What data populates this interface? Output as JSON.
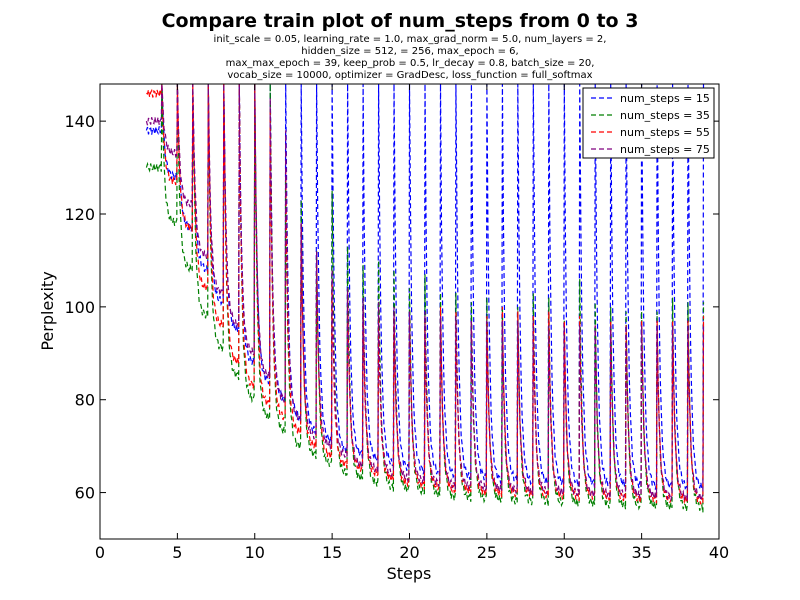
{
  "chart_data": {
    "type": "line",
    "title": "Compare train plot of num_steps from 0 to 3",
    "subtitle_lines": [
      "init_scale = 0.05, learning_rate = 1.0, max_grad_norm = 5.0, num_layers = 2,",
      "hidden_size = 512,   = 256, max_epoch = 6,",
      "max_max_epoch = 39, keep_prob = 0.5, lr_decay = 0.8, batch_size = 20,",
      "vocab_size = 10000, optimizer = GradDesc, loss_function = full_softmax"
    ],
    "xlabel": "Steps",
    "ylabel": "Perplexity",
    "xlim": [
      0,
      40
    ],
    "ylim": [
      50,
      148
    ],
    "xticks": [
      0,
      5,
      10,
      15,
      20,
      25,
      30,
      35,
      40
    ],
    "yticks": [
      60,
      80,
      100,
      120,
      140
    ],
    "grid": false,
    "legend_position": "top-right",
    "line_style": "dashed",
    "series": [
      {
        "name": "num_steps = 15",
        "color": "#0000ff",
        "epoch_start": 3,
        "epoch_end": 39,
        "x": [
          3,
          4,
          5,
          6,
          7,
          8,
          9,
          10,
          11,
          12,
          13,
          14,
          15,
          16,
          17,
          18,
          19,
          20,
          21,
          22,
          23,
          24,
          25,
          26,
          27,
          28,
          29,
          30,
          31,
          32,
          33,
          34,
          35,
          36,
          37,
          38,
          39
        ],
        "y": [
          138,
          128,
          117,
          108,
          101,
          95,
          88,
          84,
          80,
          76,
          73,
          71,
          69,
          68,
          67,
          66,
          65,
          64.5,
          64,
          63.5,
          63,
          63,
          62.5,
          62.5,
          62,
          62,
          62,
          61.8,
          61.7,
          61.5,
          61.5,
          61.3,
          61.2,
          61,
          61,
          60.8,
          60.5
        ],
        "spike_peaks": [
          148,
          148,
          148,
          148,
          148,
          148,
          148,
          148,
          148,
          148,
          148,
          148,
          148,
          148,
          148,
          148,
          148,
          148,
          148,
          148,
          148,
          148,
          148,
          148,
          148,
          148,
          148,
          148,
          148,
          148,
          148,
          148,
          148,
          148,
          148,
          148
        ]
      },
      {
        "name": "num_steps = 35",
        "color": "#007f00",
        "epoch_start": 3,
        "epoch_end": 39,
        "x": [
          3,
          4,
          5,
          6,
          7,
          8,
          9,
          10,
          11,
          12,
          13,
          14,
          15,
          16,
          17,
          18,
          19,
          20,
          21,
          22,
          23,
          24,
          25,
          26,
          27,
          28,
          29,
          30,
          31,
          32,
          33,
          34,
          35,
          36,
          37,
          38,
          39
        ],
        "y": [
          130,
          118,
          108,
          98,
          91,
          85,
          80,
          76,
          73,
          70,
          68,
          66,
          64,
          63,
          62,
          61,
          60.5,
          60,
          59.5,
          59,
          58.8,
          58.5,
          58.3,
          58,
          58,
          57.8,
          57.7,
          57.5,
          57.5,
          57.3,
          57.2,
          57,
          57,
          56.8,
          56.7,
          56.5,
          56.3
        ],
        "spike_peaks": [
          148,
          148,
          148,
          148,
          148,
          148,
          148,
          148,
          128,
          123,
          112,
          125,
          113,
          109,
          110,
          108,
          104,
          107,
          103,
          103,
          101,
          102,
          100,
          100,
          103,
          102,
          97,
          106,
          101,
          100,
          99,
          99,
          99,
          102,
          101,
          101
        ]
      },
      {
        "name": "num_steps = 55",
        "color": "#ff0000",
        "epoch_start": 3,
        "epoch_end": 39,
        "x": [
          3,
          4,
          5,
          6,
          7,
          8,
          9,
          10,
          11,
          12,
          13,
          14,
          15,
          16,
          17,
          18,
          19,
          20,
          21,
          22,
          23,
          24,
          25,
          26,
          27,
          28,
          29,
          30,
          31,
          32,
          33,
          34,
          35,
          36,
          37,
          38,
          39
        ],
        "y": [
          146,
          127,
          117,
          104,
          96,
          88,
          83,
          79,
          76,
          73,
          70,
          68,
          66,
          65,
          64,
          63,
          62,
          61.5,
          61,
          60.5,
          60.3,
          60,
          59.8,
          59.5,
          59.5,
          59.3,
          59.2,
          59,
          59,
          58.8,
          58.7,
          58.5,
          58.5,
          58.3,
          58.2,
          58,
          58
        ],
        "spike_peaks": [
          148,
          148,
          148,
          148,
          148,
          148,
          148,
          142,
          130,
          118,
          110,
          105,
          103,
          100,
          98,
          99,
          98,
          98,
          100,
          99,
          97,
          98,
          100,
          99,
          98,
          99,
          97,
          98,
          96,
          97,
          96,
          97,
          97,
          97,
          97,
          98
        ]
      },
      {
        "name": "num_steps = 75",
        "color": "#7f007f",
        "epoch_start": 3,
        "epoch_end": 39,
        "x": [
          3,
          4,
          5,
          6,
          7,
          8,
          9,
          10,
          11,
          12,
          13,
          14,
          15,
          16,
          17,
          18,
          19,
          20,
          21,
          22,
          23,
          24,
          25,
          26,
          27,
          28,
          29,
          30,
          31,
          32,
          33,
          34,
          35,
          36,
          37,
          38,
          39
        ],
        "y": [
          140,
          133,
          122,
          111,
          103,
          96,
          90,
          85,
          80,
          76,
          72,
          70,
          68,
          66,
          65,
          64,
          63,
          62.5,
          62,
          61.5,
          61.2,
          61,
          60.7,
          60.5,
          60.3,
          60.2,
          60,
          59.8,
          59.7,
          59.5,
          59.5,
          59.3,
          59.2,
          59,
          59,
          58.8,
          58.7
        ],
        "spike_peaks": [
          148,
          148,
          148,
          148,
          148,
          148,
          148,
          145,
          138,
          118,
          112,
          108,
          104,
          102,
          101,
          100,
          99,
          99,
          98,
          98,
          97,
          97,
          97,
          97,
          97,
          96,
          96,
          96,
          96,
          96,
          96,
          96,
          96,
          96,
          96,
          96
        ]
      }
    ]
  }
}
